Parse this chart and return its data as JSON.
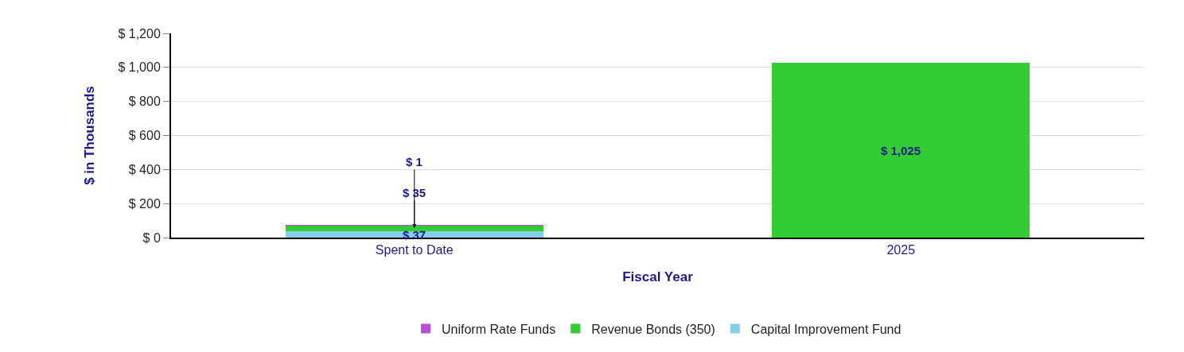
{
  "chart_data": {
    "type": "bar",
    "stacked": true,
    "xlabel": "Fiscal Year",
    "ylabel": "$ in Thousands",
    "categories": [
      "Spent to Date",
      "2025"
    ],
    "series": [
      {
        "name": "Capital Improvement Fund",
        "color": "#87ceeb",
        "values": [
          37,
          null
        ],
        "value_labels": [
          "$ 37",
          null
        ]
      },
      {
        "name": "Revenue Bonds (350)",
        "color": "#33cc33",
        "values": [
          35,
          1025
        ],
        "value_labels": [
          "$ 35",
          "$ 1,025"
        ]
      },
      {
        "name": "Uniform Rate Funds",
        "color": "#b94fd6",
        "values": [
          1,
          null
        ],
        "value_labels": [
          "$ 1",
          null
        ]
      }
    ],
    "ylim": [
      0,
      1200
    ],
    "yticks": [
      {
        "value": 0,
        "label": "$ 0"
      },
      {
        "value": 200,
        "label": "$ 200"
      },
      {
        "value": 400,
        "label": "$ 400"
      },
      {
        "value": 600,
        "label": "$ 600"
      },
      {
        "value": 800,
        "label": "$ 800"
      },
      {
        "value": 1000,
        "label": "$ 1,000"
      },
      {
        "value": 1200,
        "label": "$ 1,200"
      }
    ],
    "grid": "y",
    "legend": "bottom"
  }
}
